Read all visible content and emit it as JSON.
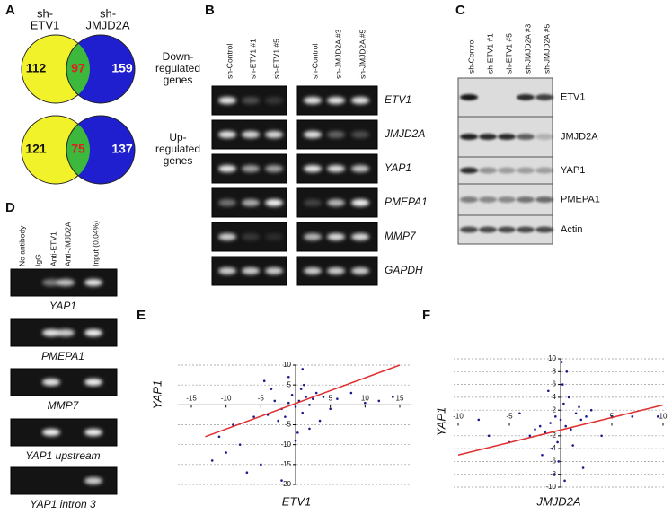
{
  "panels": {
    "A": {
      "label": "A",
      "columns": [
        [
          "sh-",
          "ETV1"
        ],
        [
          "sh-",
          "JMJD2A"
        ]
      ],
      "venns": [
        {
          "left": 112,
          "overlap": 97,
          "right": 159,
          "label": [
            "Down-",
            "regulated",
            "genes"
          ]
        },
        {
          "left": 121,
          "overlap": 75,
          "right": 137,
          "label": [
            "Up-",
            "regulated",
            "genes"
          ]
        }
      ]
    },
    "B": {
      "label": "B",
      "lanes_left": [
        "sh-Control",
        "sh-ETV1 #1",
        "sh-ETV1 #5"
      ],
      "lanes_right": [
        "sh-Control",
        "sh-JMJD2A #3",
        "sh-JMJD2A #5"
      ],
      "genes": [
        "ETV1",
        "JMJD2A",
        "YAP1",
        "PMEPA1",
        "MMP7",
        "GAPDH"
      ]
    },
    "C": {
      "label": "C",
      "lanes": [
        "sh-Control",
        "sh-ETV1 #1",
        "sh-ETV1 #5",
        "sh-JMJD2A #3",
        "sh-JMJD2A #5"
      ],
      "proteins": [
        "ETV1",
        "JMJD2A",
        "YAP1",
        "PMEPA1",
        "Actin"
      ]
    },
    "D": {
      "label": "D",
      "lanes": [
        "No antibody",
        "IgG",
        "Anti-ETV1",
        "Anti-JMJD2A",
        "Input (0.04%)"
      ],
      "genes": [
        "YAP1",
        "PMEPA1",
        "MMP7",
        "YAP1 upstream",
        "YAP1 intron 3"
      ]
    }
  },
  "chart_data": [
    {
      "type": "scatter",
      "label": "E",
      "xlabel": "ETV1",
      "ylabel": "YAP1",
      "color": "#1a1a8c",
      "grid": true,
      "xlim": [
        -15,
        15
      ],
      "ylim": [
        -20,
        10
      ],
      "xticks": [
        -15,
        -10,
        -5,
        5,
        10,
        15
      ],
      "yticks": [
        10,
        5,
        -5,
        -10,
        -15,
        -20
      ],
      "x": [
        0.5,
        -1,
        1.5,
        -2,
        2.5,
        0,
        -0.5,
        1,
        -3,
        3,
        -1.5,
        2,
        -4,
        4,
        0.8,
        -2.5,
        1.2,
        -6,
        6,
        -8,
        -10,
        8,
        12,
        14,
        -11,
        -5,
        2,
        -3.5,
        0.3,
        -7,
        5,
        -1,
        -12,
        3.5,
        -4.5,
        0,
        -9,
        1,
        10,
        -2
      ],
      "y": [
        1,
        0.5,
        2,
        -1,
        1.5,
        -0.5,
        2.5,
        -2,
        1,
        3,
        -3,
        0,
        -2.5,
        2,
        4,
        -4,
        5,
        -3,
        1.5,
        -10,
        -12,
        3,
        1,
        2,
        -8,
        -15,
        -6,
        4,
        -7,
        -17,
        -1,
        7,
        -14,
        -4,
        6,
        -9,
        -5,
        9,
        0.5,
        -19
      ],
      "trendline": {
        "x": [
          -13,
          15
        ],
        "y": [
          -8,
          10
        ],
        "color": "#e03030"
      }
    },
    {
      "type": "scatter",
      "label": "F",
      "xlabel": "JMJD2A",
      "ylabel": "YAP1",
      "color": "#1a1a8c",
      "grid": true,
      "xlim": [
        -10,
        10
      ],
      "ylim": [
        -10,
        10
      ],
      "xticks": [
        -10,
        -5,
        5,
        10
      ],
      "yticks": [
        10,
        8,
        6,
        4,
        2,
        -2,
        -4,
        -6,
        -8,
        -10
      ],
      "x": [
        0,
        0.5,
        -0.5,
        1,
        -1,
        1.5,
        -1.5,
        0.3,
        -0.3,
        2,
        -2,
        0.8,
        -0.8,
        2.5,
        -2.5,
        3,
        -3,
        0.2,
        -0.2,
        1.2,
        -4,
        4,
        5,
        -5,
        0.6,
        -0.6,
        1.8,
        -1.2,
        7,
        -7,
        0.4,
        0.1,
        -1.8,
        2.2,
        9.5,
        -8
      ],
      "y": [
        0.5,
        -0.5,
        1,
        -1,
        0,
        1.5,
        -1.5,
        3,
        -3,
        0.5,
        -0.5,
        4,
        -4,
        1,
        -1,
        2,
        -2,
        6,
        -6,
        -3.5,
        1.5,
        -2,
        1,
        -3,
        8,
        -8,
        2.5,
        5,
        1,
        -2,
        -9,
        9.5,
        -5,
        -7,
        1,
        0.5
      ],
      "trendline": {
        "x": [
          -10,
          10
        ],
        "y": [
          -5,
          2.8
        ],
        "color": "#e03030"
      }
    }
  ]
}
